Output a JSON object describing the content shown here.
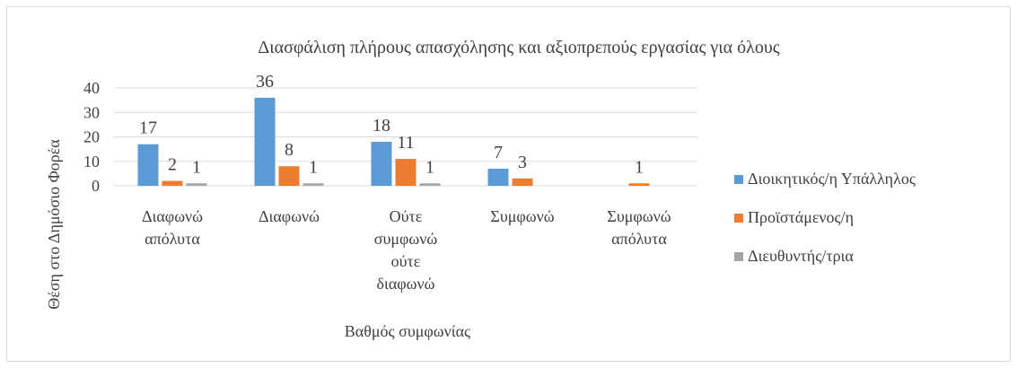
{
  "chart_data": {
    "type": "bar",
    "title": "Διασφάλιση πλήρους απασχόλησης και αξιοπρεπούς εργασίας για όλους",
    "xlabel": "Βαθμός συμφωνίας",
    "ylabel": "Θέση στο Δημόσιο Φορέα",
    "ylim": [
      0,
      40
    ],
    "yticks": [
      "0",
      "10",
      "20",
      "30",
      "40"
    ],
    "grid": true,
    "legend_position": "right",
    "categories": [
      "Διαφωνώ απόλυτα",
      "Διαφωνώ",
      "Ούτε συμφωνώ ούτε διαφωνώ",
      "Συμφωνώ",
      "Συμφωνώ απόλυτα"
    ],
    "category_label_lines": [
      [
        "Διαφωνώ",
        "απόλυτα"
      ],
      [
        "Διαφωνώ"
      ],
      [
        "Ούτε",
        "συμφωνώ",
        "ούτε",
        "διαφωνώ"
      ],
      [
        "Συμφωνώ"
      ],
      [
        "Συμφωνώ",
        "απόλυτα"
      ]
    ],
    "series": [
      {
        "name": "Διοικητικός/η Υπάλληλος",
        "color": "#5b9bd5",
        "values": [
          17,
          36,
          18,
          7,
          0
        ],
        "labels": [
          "17",
          "36",
          "18",
          "7",
          ""
        ]
      },
      {
        "name": "Προϊστάμενος/η",
        "color": "#ed7d31",
        "values": [
          2,
          8,
          11,
          3,
          1
        ],
        "labels": [
          "2",
          "8",
          "11",
          "3",
          "1"
        ]
      },
      {
        "name": "Διευθυντής/τρια",
        "color": "#a5a5a5",
        "values": [
          1,
          1,
          1,
          0,
          0
        ],
        "labels": [
          "1",
          "1",
          "1",
          "",
          ""
        ]
      }
    ]
  }
}
